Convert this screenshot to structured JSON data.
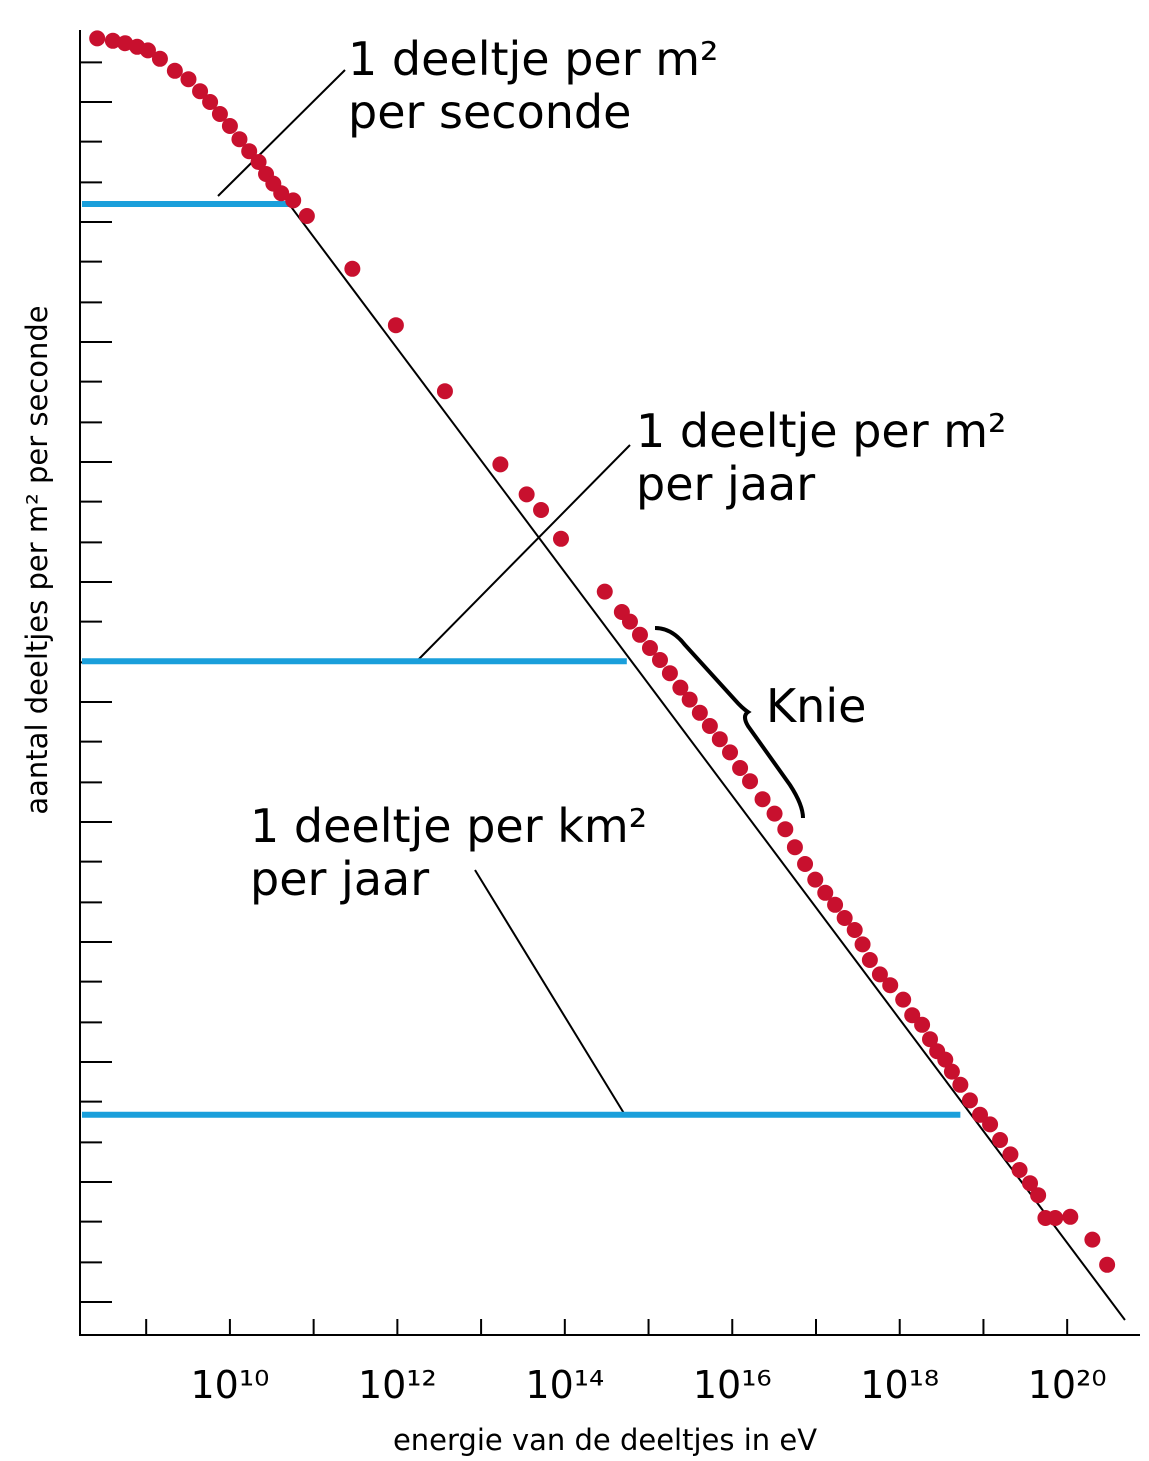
{
  "chart_data": {
    "type": "scatter",
    "xscale": "log",
    "xlabel": "energie van de deeltjes in eV",
    "ylabel": "aantal deeltjes per m² per seconde",
    "xlim": [
      162000000.0,
      7.41e+20
    ],
    "ylim": [
      -0.275,
      10.6
    ],
    "xticks": [
      1000000000.0,
      {
        "value": 10000000000.0,
        "label": "10¹⁰"
      },
      100000000000.0,
      {
        "value": 1000000000000.0,
        "label": "10¹²"
      },
      10000000000000.0,
      {
        "value": 100000000000000.0,
        "label": "10¹⁴"
      },
      1000000000000000.0,
      {
        "value": 1e+16,
        "label": "10¹⁶"
      },
      1e+17,
      {
        "value": 1e+18,
        "label": "10¹⁸"
      },
      1e+19,
      {
        "value": 1e+20,
        "label": "10²⁰"
      }
    ],
    "yticks": [
      0,
      0.33,
      0.67,
      1,
      1.33,
      1.67,
      2,
      2.33,
      2.67,
      3,
      3.33,
      3.67,
      4,
      4.33,
      4.67,
      5,
      5.33,
      5.67,
      6,
      6.33,
      6.67,
      7,
      7.33,
      7.67,
      8,
      8.33,
      8.67,
      9,
      9.33,
      9.67,
      10,
      10.33
    ],
    "color": "#c8102e",
    "x": [
      260000000.0,
      400000000.0,
      560000000.0,
      780000000.0,
      1050000000.0,
      1460000000.0,
      2200000000.0,
      3200000000.0,
      4400000000.0,
      5800000000.0,
      7600000000.0,
      10000000000.0,
      13000000000.0,
      17000000000.0,
      22000000000.0,
      27000000000.0,
      33000000000.0,
      41000000000.0,
      57000000000.0,
      83000000000.0,
      290000000000.0,
      960000000000.0,
      3700000000000.0,
      17000000000000.0,
      35000000000000.0,
      52000000000000.0,
      90000000000000.0,
      300000000000000.0,
      480000000000000.0,
      600000000000000.0,
      790000000000000.0,
      1040000000000000.0,
      1370000000000000.0,
      1800000000000000.0,
      2400000000000000.0,
      3100000000000000.0,
      4100000000000000.0,
      5400000000000000.0,
      7100000000000000.0,
      9400000000000000.0,
      1.24e+16,
      1.63e+16,
      2.3e+16,
      3.2e+16,
      4.3e+16,
      5.6e+16,
      7.4e+16,
      9.8e+16,
      1.29e+17,
      1.69e+17,
      2.2e+17,
      2.9e+17,
      3.6e+17,
      4.4e+17,
      5.8e+17,
      7.7e+17,
      1.1e+18,
      1.41e+18,
      1.85e+18,
      2.3e+18,
      2.8e+18,
      3.5e+18,
      4.2e+18,
      5.3e+18,
      6.9e+18,
      9.1e+18,
      1.2e+19,
      1.58e+19,
      2.1e+19,
      2.7e+19,
      3.6e+19,
      4.5e+19,
      5.5e+19,
      7.2e+19,
      1.09e+20,
      2e+20,
      3e+20
    ],
    "values": [
      10.53,
      10.51,
      10.49,
      10.46,
      10.43,
      10.36,
      10.26,
      10.19,
      10.09,
      10.0,
      9.9,
      9.8,
      9.69,
      9.59,
      9.5,
      9.4,
      9.32,
      9.24,
      9.18,
      9.05,
      8.61,
      8.14,
      7.59,
      6.98,
      6.73,
      6.6,
      6.36,
      5.92,
      5.75,
      5.67,
      5.56,
      5.45,
      5.35,
      5.24,
      5.12,
      5.02,
      4.91,
      4.8,
      4.69,
      4.58,
      4.45,
      4.34,
      4.19,
      4.07,
      3.94,
      3.79,
      3.65,
      3.52,
      3.41,
      3.31,
      3.2,
      3.1,
      2.98,
      2.85,
      2.73,
      2.64,
      2.52,
      2.39,
      2.31,
      2.19,
      2.09,
      2.02,
      1.92,
      1.81,
      1.68,
      1.56,
      1.48,
      1.35,
      1.23,
      1.1,
      0.99,
      0.89,
      0.7,
      0.7,
      0.71,
      0.52,
      0.31
    ],
    "fit_line": {
      "x": [
        52000000000.0,
        4.9e+20
      ],
      "y": [
        9.14,
        -0.15
      ],
      "color": "#000000"
    },
    "reference_lines": [
      {
        "y": 9.15,
        "x_end": 52000000000.0,
        "color": "#1a9fdb"
      },
      {
        "y": 5.34,
        "x_end": 550000000000000.0,
        "color": "#1a9fdb"
      },
      {
        "y": 1.56,
        "x_end": 5.3e+18,
        "color": "#1a9fdb"
      }
    ],
    "annotations": [
      {
        "lines": [
          "1 deeltje per m²",
          "per seconde"
        ]
      },
      {
        "lines": [
          "1 deeltje per m²",
          "per jaar"
        ]
      },
      {
        "lines": [
          "1 deeltje per km²",
          "per jaar"
        ]
      },
      {
        "lines": [
          "Knie"
        ]
      }
    ]
  }
}
